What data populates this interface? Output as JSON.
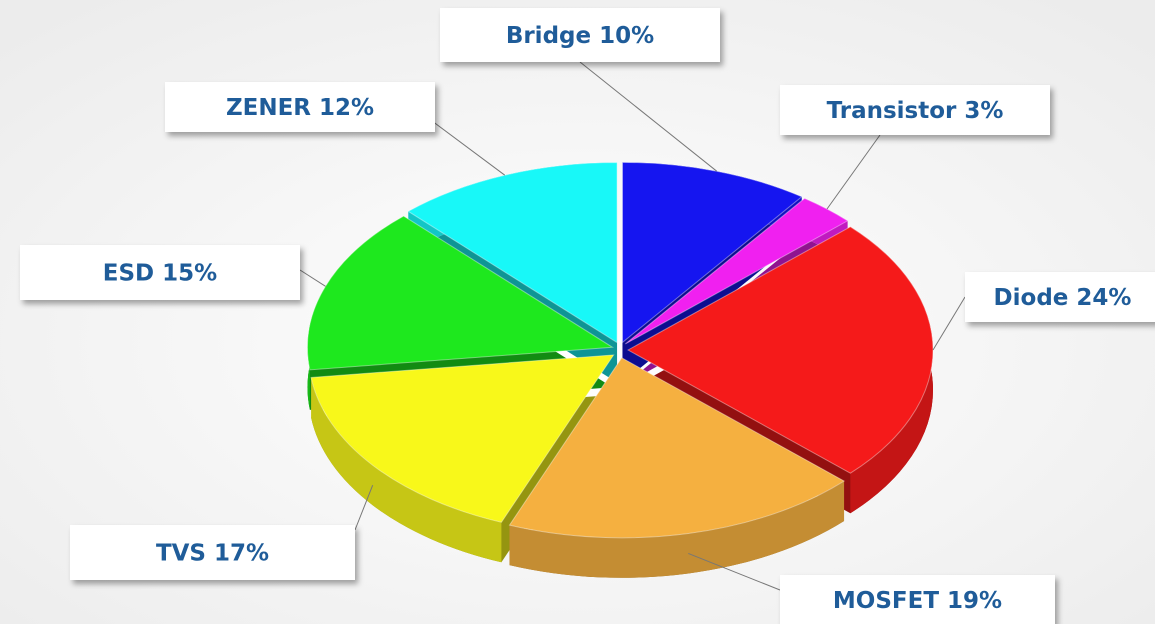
{
  "chart_data": {
    "type": "pie",
    "categories": [
      "Bridge",
      "Transistor",
      "Diode",
      "MOSFET",
      "TVS",
      "ESD",
      "ZENER"
    ],
    "values": [
      10,
      3,
      24,
      19,
      17,
      15,
      12
    ],
    "value_labels": [
      "10%",
      "3%",
      "24%",
      "19%",
      "17%",
      "15%",
      "12%"
    ],
    "colors": [
      "#1515f0",
      "#f020f0",
      "#f51a1a",
      "#f5b040",
      "#f8f81a",
      "#1ee81e",
      "#18f8f8"
    ]
  }
}
